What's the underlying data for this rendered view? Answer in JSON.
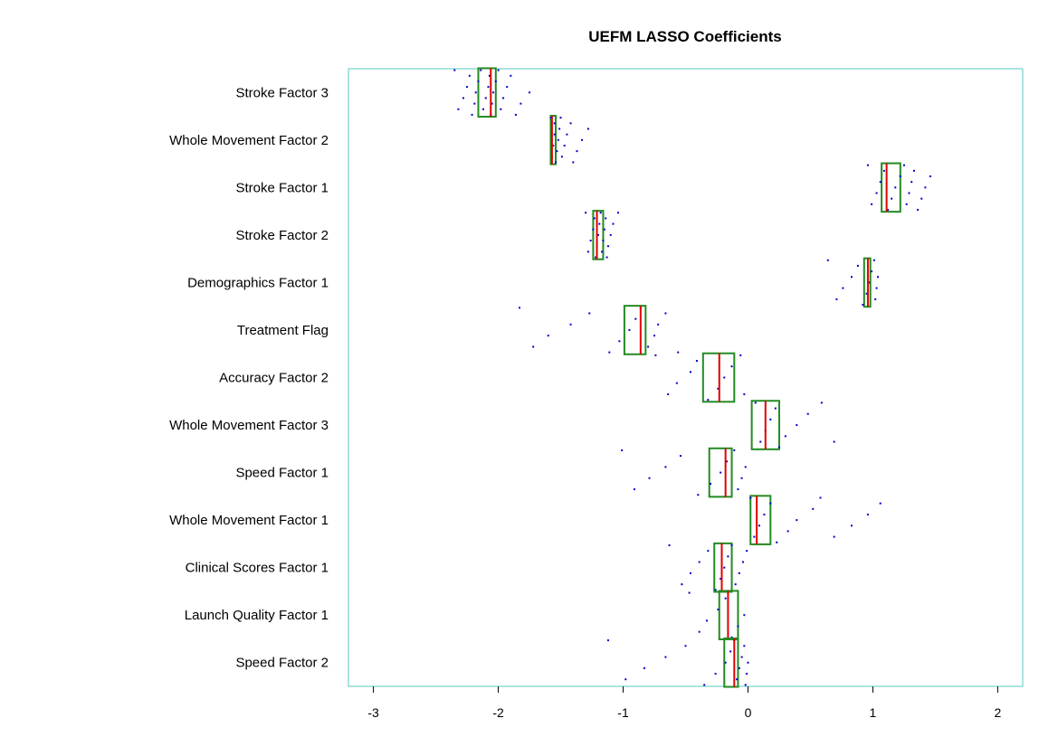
{
  "chart_data": {
    "type": "box",
    "title": "UEFM LASSO Coefficients",
    "xlabel": "",
    "ylabel": "",
    "xlim": [
      -3.2,
      2.2
    ],
    "x_ticks": [
      "-3",
      "-2",
      "-1",
      "0",
      "1",
      "2"
    ],
    "x_tick_values": [
      -3,
      -2,
      -1,
      0,
      1,
      2
    ],
    "categories": [
      "Stroke Factor 3",
      "Whole Movement Factor 2",
      "Stroke Factor 1",
      "Stroke Factor 2",
      "Demographics Factor 1",
      "Treatment Flag",
      "Accuracy Factor 2",
      "Whole Movement Factor 3",
      "Speed Factor 1",
      "Whole Movement Factor 1",
      "Clinical Scores Factor 1",
      "Launch Quality Factor 1",
      "Speed Factor 2"
    ],
    "boxes": [
      {
        "q1": -2.16,
        "median": -2.06,
        "q3": -2.02
      },
      {
        "q1": -1.58,
        "median": -1.57,
        "q3": -1.54
      },
      {
        "q1": 1.07,
        "median": 1.11,
        "q3": 1.22
      },
      {
        "q1": -1.24,
        "median": -1.21,
        "q3": -1.16
      },
      {
        "q1": 0.93,
        "median": 0.96,
        "q3": 0.98
      },
      {
        "q1": -0.99,
        "median": -0.86,
        "q3": -0.82
      },
      {
        "q1": -0.36,
        "median": -0.23,
        "q3": -0.11
      },
      {
        "q1": 0.03,
        "median": 0.14,
        "q3": 0.25
      },
      {
        "q1": -0.31,
        "median": -0.18,
        "q3": -0.13
      },
      {
        "q1": 0.02,
        "median": 0.07,
        "q3": 0.18
      },
      {
        "q1": -0.27,
        "median": -0.21,
        "q3": -0.13
      },
      {
        "q1": -0.23,
        "median": -0.16,
        "q3": -0.08
      },
      {
        "q1": -0.19,
        "median": -0.11,
        "q3": -0.08
      }
    ],
    "points": [
      [
        -2.35,
        -2.32,
        -2.28,
        -2.25,
        -2.23,
        -2.21,
        -2.19,
        -2.18,
        -2.16,
        -2.14,
        -2.12,
        -2.1,
        -2.08,
        -2.07,
        -2.06,
        -2.05,
        -2.04,
        -2.02,
        -2.0,
        -1.98,
        -1.96,
        -1.93,
        -1.9,
        -1.86,
        -1.82,
        -1.75
      ],
      [
        -1.58,
        -1.57,
        -1.56,
        -1.55,
        -1.55,
        -1.54,
        -1.53,
        -1.52,
        -1.51,
        -1.5,
        -1.49,
        -1.47,
        -1.45,
        -1.42,
        -1.4,
        -1.37,
        -1.33,
        -1.28
      ],
      [
        0.96,
        0.99,
        1.03,
        1.06,
        1.09,
        1.12,
        1.15,
        1.18,
        1.22,
        1.25,
        1.27,
        1.29,
        1.31,
        1.33,
        1.36,
        1.39,
        1.42,
        1.46
      ],
      [
        -1.3,
        -1.28,
        -1.26,
        -1.24,
        -1.23,
        -1.22,
        -1.21,
        -1.2,
        -1.19,
        -1.18,
        -1.17,
        -1.16,
        -1.15,
        -1.14,
        -1.13,
        -1.12,
        -1.1,
        -1.08,
        -1.04
      ],
      [
        0.64,
        0.71,
        0.76,
        0.83,
        0.88,
        0.92,
        0.95,
        0.97,
        0.99,
        1.01,
        1.02,
        1.03,
        1.04
      ],
      [
        -1.83,
        -1.72,
        -1.6,
        -1.42,
        -1.27,
        -1.11,
        -1.03,
        -0.95,
        -0.9,
        -0.86,
        -0.8,
        -0.75,
        -0.72,
        -0.66,
        -0.56
      ],
      [
        -0.74,
        -0.64,
        -0.57,
        -0.46,
        -0.41,
        -0.32,
        -0.24,
        -0.19,
        -0.13,
        -0.06,
        -0.03
      ],
      [
        0.06,
        0.1,
        0.14,
        0.18,
        0.22,
        0.25,
        0.3,
        0.39,
        0.48,
        0.59,
        0.69
      ],
      [
        -1.01,
        -0.91,
        -0.79,
        -0.66,
        -0.54,
        -0.4,
        -0.3,
        -0.22,
        -0.17,
        -0.11,
        -0.08,
        -0.05,
        -0.02
      ],
      [
        0.02,
        0.05,
        0.09,
        0.13,
        0.18,
        0.23,
        0.32,
        0.39,
        0.52,
        0.58,
        0.69,
        0.83,
        0.96,
        1.06
      ],
      [
        -0.63,
        -0.53,
        -0.46,
        -0.39,
        -0.32,
        -0.26,
        -0.22,
        -0.19,
        -0.16,
        -0.13,
        -0.1,
        -0.07,
        -0.04,
        -0.01
      ],
      [
        -0.47,
        -0.39,
        -0.33,
        -0.24,
        -0.18,
        -0.13,
        -0.08,
        -0.03
      ],
      [
        -1.12,
        -0.98,
        -0.83,
        -0.66,
        -0.5,
        -0.35,
        -0.26,
        -0.18,
        -0.14,
        -0.11,
        -0.09,
        -0.07,
        -0.05,
        -0.03,
        -0.02,
        -0.01,
        0.0
      ]
    ],
    "colors": {
      "frame": "#5bc8c0",
      "box": "#228b22",
      "median": "#e00000",
      "points": "#0000cc"
    },
    "grid": false,
    "legend": "none"
  }
}
